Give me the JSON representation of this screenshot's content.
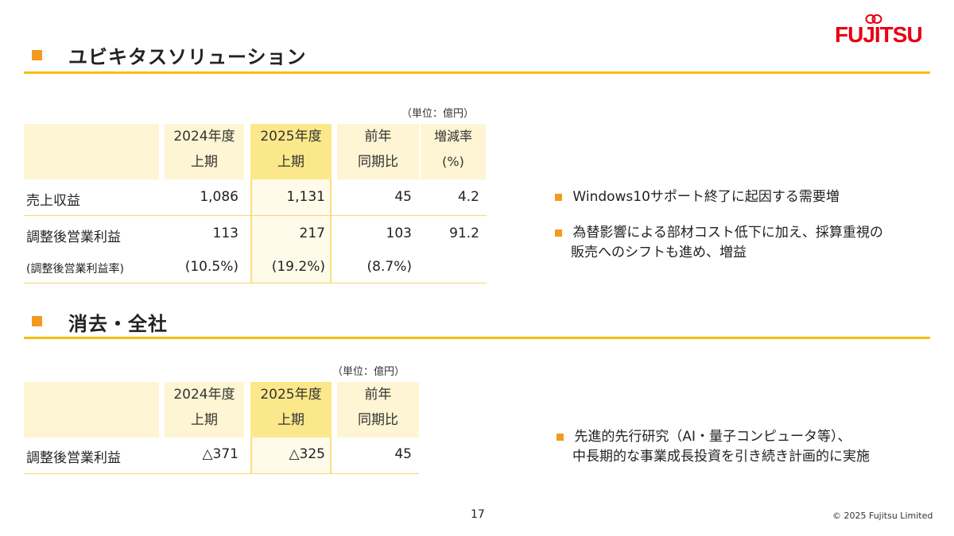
{
  "logo": "FUJITSU",
  "sections": {
    "ubiquitous": {
      "title": "ユビキタスソリューション",
      "unit": "（単位：億円）",
      "headers": [
        "2024年度",
        "上期",
        "2025年度",
        "上期",
        "前年",
        "同期比",
        "増減率",
        "(%)"
      ],
      "rows": [
        {
          "label": "売上収益",
          "values": [
            "1,086",
            "1,131",
            "45",
            "4.2"
          ]
        },
        {
          "label": "調整後営業利益",
          "values": [
            "113",
            "217",
            "103",
            "91.2"
          ]
        },
        {
          "label": "(調整後営業利益率)",
          "values": [
            "(10.5%)",
            "(19.2%)",
            "(8.7%)",
            ""
          ]
        }
      ],
      "bullets": [
        "Windows10サポート終了に起因する需要増",
        "為替影響による部材コスト低下に加え、採算重視の",
        "販売へのシフトも進め、増益"
      ]
    },
    "elimination": {
      "title": "消去・全社",
      "unit": "（単位：億円）",
      "headers": [
        "2024年度",
        "上期",
        "2025年度",
        "上期",
        "前年",
        "同期比"
      ],
      "rows": [
        {
          "label": "調整後営業利益",
          "values": [
            "△371",
            "△325",
            "45"
          ]
        }
      ],
      "bullets": [
        "先進的先行研究（AI・量子コンピュータ等）、",
        "中長期的な事業成長投資を引き続き計画的に実施"
      ]
    }
  },
  "footer": {
    "page": "17",
    "copyright": "© 2025 Fujitsu Limited"
  }
}
